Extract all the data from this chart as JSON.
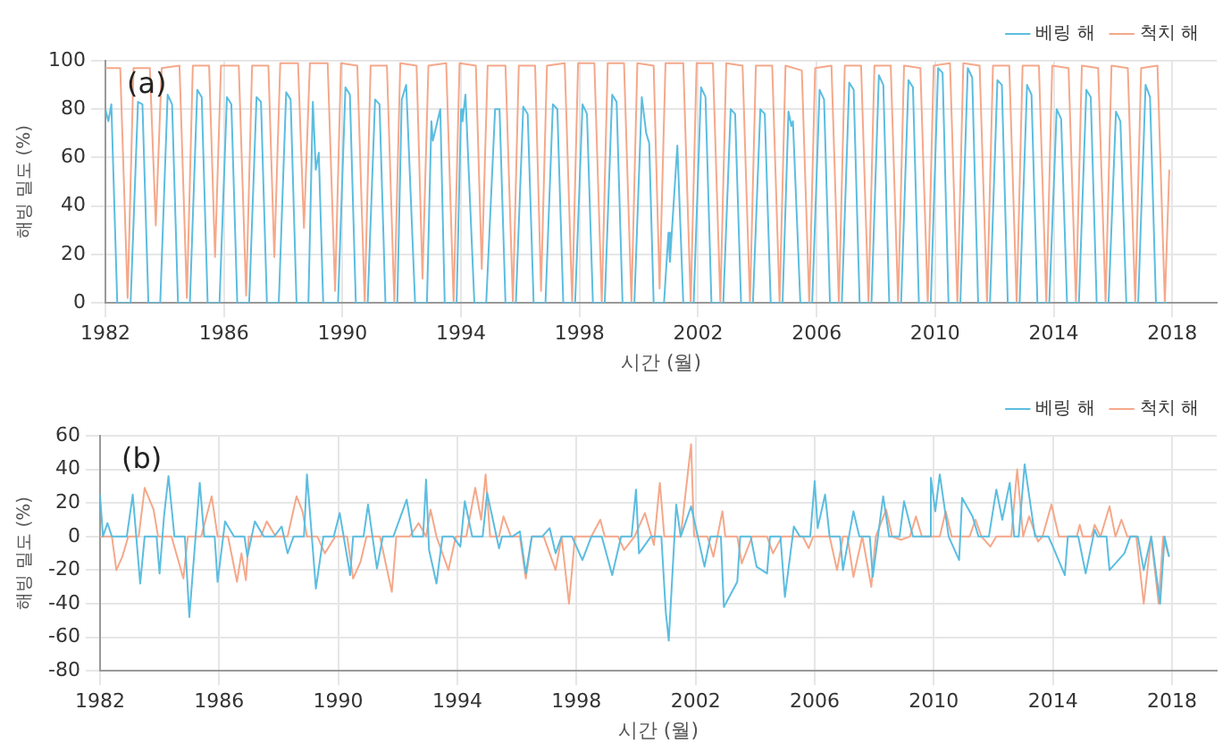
{
  "chart_data": [
    {
      "type": "line",
      "xlabel": "시간 (월)",
      "ylabel": "해빙 밀도 (%)",
      "annotations": [
        "(a)"
      ],
      "xlim": [
        1982,
        2019.5
      ],
      "xticks": [
        1982,
        1986,
        1990,
        1994,
        1998,
        2002,
        2006,
        2010,
        2014,
        2018
      ],
      "ylim": [
        0,
        100
      ],
      "yticks": [
        0,
        20,
        40,
        60,
        80,
        100
      ],
      "grid": true,
      "legend": "top right",
      "marker": "none",
      "line_style": "solid",
      "series": [
        {
          "name": "베링 해",
          "color": "#5bbde0",
          "x": [
            1982.0,
            1982.1,
            1982.2,
            1982.4,
            1982.85,
            1983.1,
            1983.25,
            1983.45,
            1983.85,
            1984.1,
            1984.25,
            1984.45,
            1984.85,
            1985.1,
            1985.25,
            1985.45,
            1985.85,
            1986.1,
            1986.25,
            1986.45,
            1986.85,
            1987.1,
            1987.25,
            1987.45,
            1987.85,
            1988.1,
            1988.25,
            1988.45,
            1988.85,
            1989.0,
            1989.1,
            1989.2,
            1989.35,
            1989.85,
            1990.1,
            1990.25,
            1990.45,
            1990.85,
            1991.1,
            1991.25,
            1991.45,
            1991.85,
            1992.0,
            1992.15,
            1992.45,
            1992.85,
            1993.0,
            1993.05,
            1993.3,
            1993.45,
            1993.85,
            1994.0,
            1994.05,
            1994.15,
            1994.45,
            1994.85,
            1995.15,
            1995.3,
            1995.5,
            1995.85,
            1996.1,
            1996.25,
            1996.45,
            1996.85,
            1997.1,
            1997.25,
            1997.45,
            1997.85,
            1998.1,
            1998.25,
            1998.45,
            1998.85,
            1999.1,
            1999.25,
            1999.45,
            1999.85,
            2000.1,
            2000.25,
            2000.35,
            2000.5,
            2000.85,
            2001.0,
            2001.05,
            2001.3,
            2001.5,
            2001.85,
            2002.1,
            2002.25,
            2002.45,
            2002.85,
            2003.1,
            2003.25,
            2003.45,
            2003.85,
            2004.1,
            2004.25,
            2004.45,
            2004.85,
            2005.05,
            2005.15,
            2005.2,
            2005.45,
            2005.85,
            2006.1,
            2006.25,
            2006.45,
            2006.85,
            2007.1,
            2007.25,
            2007.45,
            2007.85,
            2008.1,
            2008.25,
            2008.45,
            2008.85,
            2009.1,
            2009.25,
            2009.45,
            2009.85,
            2010.1,
            2010.25,
            2010.45,
            2010.85,
            2011.1,
            2011.25,
            2011.45,
            2011.85,
            2012.1,
            2012.25,
            2012.45,
            2012.85,
            2013.1,
            2013.25,
            2013.45,
            2013.85,
            2014.1,
            2014.25,
            2014.45,
            2014.85,
            2015.1,
            2015.25,
            2015.45,
            2015.85,
            2016.1,
            2016.25,
            2016.45,
            2016.85,
            2017.1,
            2017.25,
            2017.45,
            2017.85
          ],
          "values": [
            80,
            75,
            82,
            0,
            0,
            83,
            82,
            0,
            0,
            86,
            82,
            0,
            0,
            88,
            85,
            0,
            0,
            85,
            82,
            0,
            0,
            85,
            83,
            0,
            0,
            87,
            84,
            0,
            0,
            83,
            55,
            62,
            0,
            0,
            89,
            86,
            0,
            0,
            84,
            82,
            0,
            0,
            84,
            90,
            0,
            0,
            75,
            67,
            80,
            0,
            0,
            80,
            75,
            86,
            0,
            0,
            80,
            80,
            0,
            0,
            81,
            78,
            0,
            0,
            82,
            80,
            0,
            0,
            82,
            78,
            0,
            0,
            86,
            83,
            0,
            0,
            85,
            70,
            66,
            0,
            0,
            29,
            17,
            65,
            0,
            0,
            89,
            85,
            0,
            0,
            80,
            78,
            0,
            0,
            80,
            78,
            0,
            0,
            79,
            73,
            75,
            0,
            0,
            88,
            84,
            0,
            0,
            91,
            88,
            0,
            0,
            94,
            90,
            0,
            0,
            92,
            89,
            0,
            0,
            97,
            95,
            0,
            0,
            97,
            93,
            0,
            0,
            92,
            90,
            0,
            0,
            90,
            86,
            0,
            0,
            80,
            76,
            0,
            0,
            88,
            85,
            0,
            0,
            79,
            75,
            0,
            0,
            90,
            85,
            0,
            0
          ]
        },
        {
          "name": "척치 해",
          "color": "#f5a88a",
          "x": [
            1982.0,
            1982.5,
            1982.75,
            1982.95,
            1983.5,
            1983.7,
            1983.9,
            1984.5,
            1984.75,
            1984.95,
            1985.5,
            1985.7,
            1985.9,
            1986.5,
            1986.75,
            1986.95,
            1987.5,
            1987.7,
            1987.9,
            1988.5,
            1988.7,
            1988.9,
            1989.5,
            1989.75,
            1989.95,
            1990.5,
            1990.75,
            1990.95,
            1991.5,
            1991.75,
            1991.95,
            1992.5,
            1992.7,
            1992.9,
            1993.5,
            1993.75,
            1993.95,
            1994.5,
            1994.7,
            1994.9,
            1995.5,
            1995.75,
            1995.95,
            1996.5,
            1996.7,
            1996.9,
            1997.5,
            1997.75,
            1997.95,
            1998.5,
            1998.75,
            1998.95,
            1999.5,
            1999.75,
            1999.95,
            2000.5,
            2000.7,
            2000.9,
            2001.5,
            2001.75,
            2001.95,
            2002.5,
            2002.75,
            2002.95,
            2003.5,
            2003.75,
            2003.95,
            2004.5,
            2004.75,
            2004.95,
            2005.5,
            2005.75,
            2005.95,
            2006.5,
            2006.75,
            2006.95,
            2007.5,
            2007.75,
            2007.95,
            2008.5,
            2008.75,
            2008.95,
            2009.5,
            2009.75,
            2009.95,
            2010.5,
            2010.75,
            2010.95,
            2011.5,
            2011.75,
            2011.95,
            2012.5,
            2012.75,
            2012.95,
            2013.5,
            2013.75,
            2013.95,
            2014.5,
            2014.75,
            2014.95,
            2015.5,
            2015.75,
            2015.95,
            2016.5,
            2016.75,
            2016.95,
            2017.5,
            2017.75,
            2017.9
          ],
          "values": [
            97,
            97,
            2,
            97,
            97,
            32,
            97,
            98,
            2,
            98,
            98,
            19,
            98,
            98,
            3,
            98,
            98,
            19,
            99,
            99,
            31,
            99,
            99,
            5,
            99,
            98,
            0,
            98,
            98,
            0,
            99,
            98,
            10,
            98,
            99,
            0,
            99,
            98,
            14,
            98,
            98,
            0,
            98,
            98,
            5,
            98,
            99,
            0,
            99,
            99,
            0,
            99,
            99,
            0,
            99,
            98,
            6,
            99,
            99,
            0,
            99,
            99,
            0,
            99,
            98,
            0,
            98,
            98,
            0,
            98,
            96,
            0,
            97,
            98,
            0,
            98,
            98,
            0,
            98,
            98,
            0,
            98,
            97,
            0,
            98,
            99,
            0,
            99,
            98,
            0,
            98,
            98,
            0,
            98,
            98,
            0,
            98,
            97,
            0,
            98,
            97,
            0,
            98,
            97,
            0,
            97,
            98,
            0,
            55
          ]
        }
      ]
    },
    {
      "type": "line",
      "xlabel": "시간 (월)",
      "ylabel": "해빙 밀도 (%)",
      "annotations": [
        "(b)"
      ],
      "xlim": [
        1982,
        2019.5
      ],
      "xticks": [
        1982,
        1986,
        1990,
        1994,
        1998,
        2002,
        2006,
        2010,
        2014,
        2018
      ],
      "ylim": [
        -80,
        60
      ],
      "yticks": [
        -80,
        -60,
        -40,
        -20,
        0,
        20,
        40,
        60
      ],
      "grid": true,
      "legend": "top right",
      "marker": "none",
      "line_style": "solid",
      "series": [
        {
          "name": "베링 해",
          "color": "#5bbde0",
          "x": [
            1982.0,
            1982.1,
            1982.25,
            1982.4,
            1982.9,
            1983.1,
            1983.35,
            1983.5,
            1983.9,
            1984.0,
            1984.15,
            1984.3,
            1984.5,
            1984.85,
            1985.0,
            1985.35,
            1985.5,
            1985.85,
            1985.95,
            1986.2,
            1986.5,
            1986.85,
            1986.95,
            1987.2,
            1987.5,
            1987.85,
            1988.1,
            1988.3,
            1988.5,
            1988.85,
            1988.95,
            1989.25,
            1989.5,
            1989.85,
            1990.05,
            1990.4,
            1990.5,
            1990.85,
            1991.0,
            1991.3,
            1991.5,
            1991.85,
            1992.3,
            1992.5,
            1992.85,
            1992.95,
            1993.05,
            1993.3,
            1993.5,
            1993.85,
            1994.1,
            1994.25,
            1994.5,
            1994.85,
            1995.0,
            1995.4,
            1995.5,
            1995.85,
            1996.1,
            1996.3,
            1996.5,
            1996.85,
            1997.1,
            1997.3,
            1997.5,
            1997.85,
            1998.2,
            1998.5,
            1998.85,
            1999.2,
            1999.5,
            1999.85,
            2000.0,
            2000.1,
            2000.5,
            2000.85,
            2001.0,
            2001.1,
            2001.35,
            2001.5,
            2001.85,
            2002.3,
            2002.5,
            2002.85,
            2002.95,
            2003.4,
            2003.5,
            2003.85,
            2004.05,
            2004.4,
            2004.5,
            2004.85,
            2005.0,
            2005.3,
            2005.5,
            2005.85,
            2006.0,
            2006.1,
            2006.35,
            2006.5,
            2006.85,
            2006.95,
            2007.3,
            2007.5,
            2007.85,
            2007.95,
            2008.3,
            2008.5,
            2008.85,
            2009.0,
            2009.3,
            2009.85,
            2009.9,
            2010.05,
            2010.2,
            2010.5,
            2010.85,
            2010.95,
            2011.3,
            2011.5,
            2011.85,
            2012.1,
            2012.3,
            2012.55,
            2012.7,
            2012.85,
            2013.05,
            2013.4,
            2013.85,
            2014.0,
            2014.4,
            2014.5,
            2014.85,
            2015.1,
            2015.4,
            2015.5,
            2015.8,
            2015.9,
            2016.4,
            2016.6,
            2016.85,
            2017.05,
            2017.3,
            2017.6,
            2017.75,
            2017.9
          ],
          "values": [
            25,
            0,
            8,
            0,
            0,
            25,
            -28,
            0,
            0,
            -22,
            12,
            36,
            0,
            0,
            -48,
            32,
            0,
            0,
            -27,
            9,
            0,
            0,
            -12,
            9,
            0,
            0,
            6,
            -10,
            0,
            0,
            37,
            -31,
            0,
            0,
            14,
            -23,
            0,
            0,
            19,
            -19,
            0,
            0,
            22,
            0,
            0,
            34,
            -8,
            -28,
            0,
            0,
            -6,
            21,
            0,
            0,
            26,
            -7,
            0,
            0,
            3,
            -22,
            0,
            0,
            5,
            -10,
            0,
            0,
            -14,
            0,
            0,
            -23,
            0,
            0,
            28,
            -10,
            0,
            0,
            -45,
            -62,
            19,
            0,
            18,
            -18,
            0,
            0,
            -42,
            -27,
            0,
            0,
            -18,
            -22,
            0,
            0,
            -36,
            6,
            0,
            0,
            33,
            5,
            25,
            0,
            0,
            -20,
            15,
            0,
            0,
            -24,
            24,
            0,
            0,
            21,
            0,
            0,
            35,
            15,
            37,
            0,
            -14,
            23,
            12,
            0,
            0,
            28,
            10,
            32,
            0,
            0,
            43,
            0,
            0,
            -6,
            -23,
            0,
            0,
            -22,
            4,
            0,
            0,
            -20,
            -10,
            0,
            0,
            -20,
            0,
            -40,
            0,
            -12
          ]
        },
        {
          "name": "척치 해",
          "color": "#f5a88a",
          "x": [
            1982.0,
            1982.4,
            1982.55,
            1982.75,
            1982.95,
            1983.3,
            1983.5,
            1983.8,
            1983.95,
            1984.4,
            1984.8,
            1984.95,
            1985.4,
            1985.75,
            1985.95,
            1986.3,
            1986.6,
            1986.75,
            1986.9,
            1987.0,
            1987.4,
            1987.6,
            1987.9,
            1988.3,
            1988.6,
            1988.8,
            1988.95,
            1989.3,
            1989.55,
            1989.9,
            1990.3,
            1990.5,
            1990.75,
            1990.95,
            1991.4,
            1991.8,
            1991.95,
            1992.4,
            1992.7,
            1992.95,
            1993.1,
            1993.3,
            1993.7,
            1993.95,
            1994.3,
            1994.6,
            1994.8,
            1994.95,
            1995.1,
            1995.4,
            1995.55,
            1995.8,
            1996.1,
            1996.3,
            1996.5,
            1996.9,
            1997.3,
            1997.5,
            1997.75,
            1997.95,
            1998.5,
            1998.8,
            1998.95,
            1999.4,
            1999.6,
            1999.95,
            2000.3,
            2000.6,
            2000.8,
            2000.95,
            2001.5,
            2001.85,
            2001.95,
            2002.4,
            2002.6,
            2002.9,
            2003.0,
            2003.4,
            2003.55,
            2003.9,
            2004.4,
            2004.6,
            2004.9,
            2005.6,
            2005.8,
            2005.95,
            2006.5,
            2006.75,
            2006.95,
            2007.1,
            2007.3,
            2007.6,
            2007.9,
            2008.05,
            2008.4,
            2008.6,
            2008.9,
            2009.2,
            2009.4,
            2009.6,
            2010.2,
            2010.4,
            2010.6,
            2011.2,
            2011.4,
            2011.6,
            2011.9,
            2012.1,
            2012.6,
            2012.8,
            2013.0,
            2013.2,
            2013.5,
            2013.65,
            2013.95,
            2014.2,
            2014.8,
            2014.9,
            2015.0,
            2015.3,
            2015.4,
            2015.6,
            2015.9,
            2016.1,
            2016.3,
            2016.5,
            2016.8,
            2017.05,
            2017.3,
            2017.55,
            2017.7,
            2017.9
          ],
          "values": [
            0,
            0,
            -20,
            -12,
            0,
            0,
            29,
            16,
            0,
            0,
            -25,
            0,
            0,
            24,
            0,
            0,
            -27,
            -10,
            -26,
            0,
            0,
            9,
            0,
            0,
            24,
            15,
            0,
            0,
            -10,
            0,
            0,
            -25,
            -15,
            0,
            0,
            -33,
            0,
            0,
            8,
            0,
            16,
            0,
            -20,
            0,
            0,
            29,
            10,
            37,
            0,
            0,
            12,
            0,
            0,
            -25,
            0,
            0,
            -20,
            0,
            -40,
            0,
            0,
            10,
            0,
            0,
            -8,
            0,
            14,
            -5,
            32,
            0,
            0,
            55,
            0,
            0,
            -12,
            15,
            0,
            0,
            -16,
            0,
            0,
            -10,
            0,
            0,
            -7,
            0,
            0,
            -20,
            0,
            0,
            -24,
            0,
            -30,
            0,
            16,
            0,
            -2,
            0,
            12,
            0,
            0,
            15,
            0,
            0,
            10,
            0,
            -6,
            0,
            0,
            40,
            0,
            12,
            -3,
            0,
            19,
            0,
            0,
            7,
            0,
            0,
            7,
            0,
            18,
            0,
            10,
            0,
            0,
            -40,
            0,
            -40,
            0,
            -12
          ]
        }
      ]
    }
  ]
}
